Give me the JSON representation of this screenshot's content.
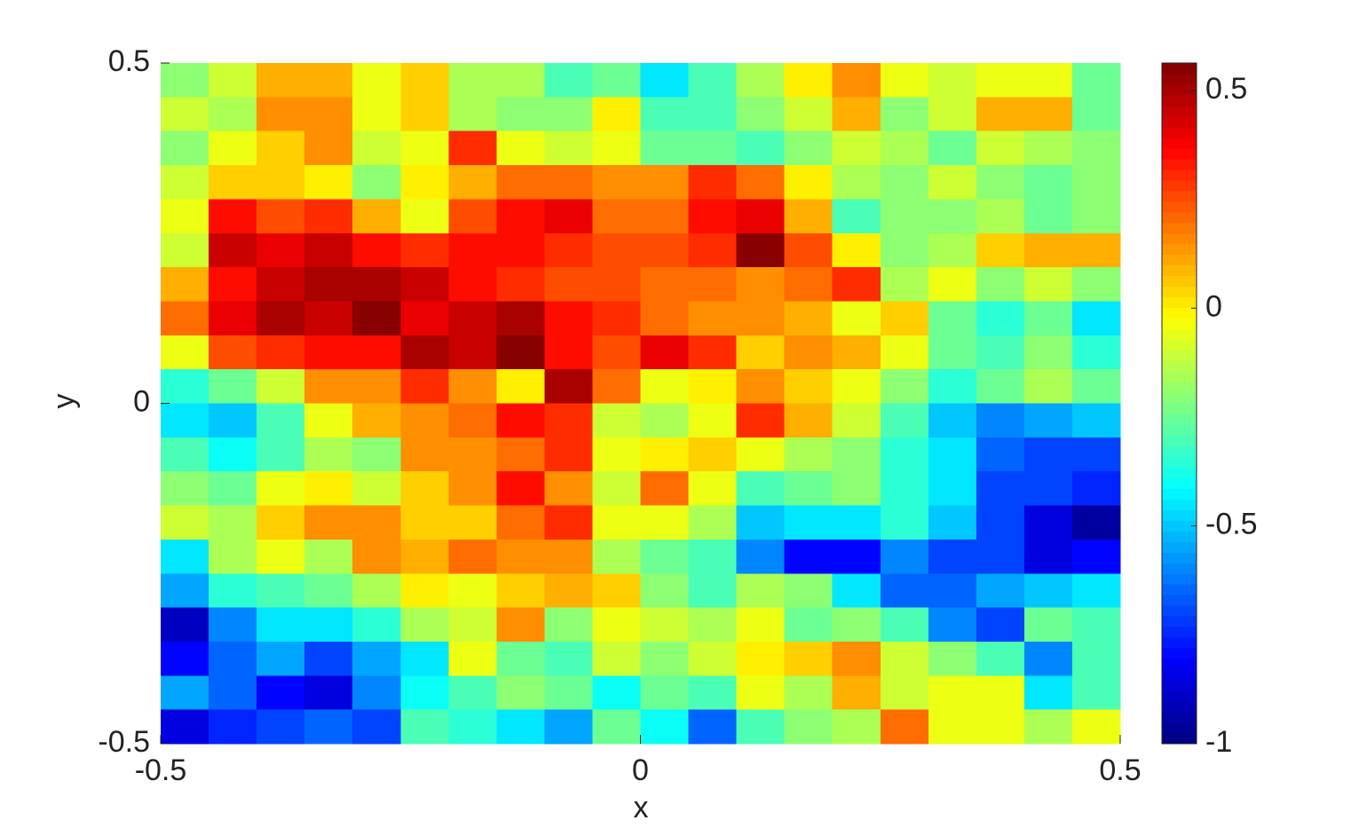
{
  "chart_data": {
    "type": "heatmap",
    "colormap": "jet",
    "xlabel": "x",
    "ylabel": "y",
    "xlim": [
      -0.5,
      0.5
    ],
    "ylim": [
      -0.5,
      0.5
    ],
    "xticks": [
      -0.5,
      0,
      0.5
    ],
    "yticks": [
      -0.5,
      0,
      0.5
    ],
    "clim": [
      -1,
      0.563
    ],
    "cticks": [
      -1,
      -0.5,
      0,
      0.5
    ],
    "z": [
      [
        -0.2,
        -0.1,
        0.1,
        0.1,
        -0.05,
        0.05,
        -0.15,
        -0.15,
        -0.3,
        -0.25,
        -0.45,
        -0.3,
        -0.15,
        0.0,
        0.15,
        -0.05,
        -0.1,
        -0.05,
        -0.05,
        -0.25
      ],
      [
        -0.1,
        -0.15,
        0.15,
        0.15,
        -0.05,
        0.05,
        -0.15,
        -0.2,
        -0.2,
        0.0,
        -0.3,
        -0.3,
        -0.2,
        -0.1,
        0.1,
        -0.2,
        -0.1,
        0.1,
        0.1,
        -0.25
      ],
      [
        -0.2,
        -0.05,
        0.05,
        0.15,
        -0.1,
        -0.05,
        0.3,
        -0.05,
        -0.1,
        -0.05,
        -0.25,
        -0.25,
        -0.3,
        -0.2,
        -0.1,
        -0.15,
        -0.25,
        -0.1,
        -0.15,
        -0.2
      ],
      [
        -0.1,
        0.05,
        0.05,
        0.0,
        -0.2,
        0.0,
        0.1,
        0.2,
        0.2,
        0.15,
        0.15,
        0.3,
        0.2,
        0.0,
        -0.15,
        -0.2,
        -0.1,
        -0.2,
        -0.25,
        -0.2
      ],
      [
        -0.05,
        0.35,
        0.25,
        0.3,
        0.1,
        -0.05,
        0.25,
        0.35,
        0.4,
        0.2,
        0.2,
        0.35,
        0.4,
        0.1,
        -0.3,
        -0.2,
        -0.2,
        -0.15,
        -0.25,
        -0.2
      ],
      [
        -0.1,
        0.45,
        0.4,
        0.45,
        0.35,
        0.3,
        0.35,
        0.35,
        0.3,
        0.25,
        0.25,
        0.3,
        0.55,
        0.25,
        0.0,
        -0.2,
        -0.15,
        0.05,
        0.1,
        0.1
      ],
      [
        0.1,
        0.35,
        0.45,
        0.5,
        0.5,
        0.45,
        0.35,
        0.3,
        0.25,
        0.25,
        0.2,
        0.2,
        0.15,
        0.2,
        0.3,
        -0.15,
        -0.05,
        -0.2,
        -0.1,
        -0.2
      ],
      [
        0.2,
        0.4,
        0.5,
        0.45,
        0.55,
        0.4,
        0.45,
        0.5,
        0.35,
        0.3,
        0.2,
        0.15,
        0.15,
        0.1,
        -0.05,
        0.05,
        -0.25,
        -0.35,
        -0.25,
        -0.45
      ],
      [
        -0.05,
        0.25,
        0.3,
        0.35,
        0.35,
        0.5,
        0.45,
        0.55,
        0.35,
        0.25,
        0.4,
        0.3,
        0.05,
        0.15,
        0.1,
        -0.05,
        -0.25,
        -0.3,
        -0.2,
        -0.35
      ],
      [
        -0.35,
        -0.25,
        -0.1,
        0.15,
        0.15,
        0.3,
        0.15,
        0.0,
        0.5,
        0.2,
        -0.05,
        0.0,
        0.15,
        0.05,
        -0.05,
        -0.2,
        -0.35,
        -0.25,
        -0.15,
        -0.25
      ],
      [
        -0.45,
        -0.5,
        -0.3,
        -0.05,
        0.1,
        0.15,
        0.2,
        0.35,
        0.3,
        -0.1,
        -0.15,
        -0.05,
        0.3,
        0.1,
        -0.1,
        -0.3,
        -0.5,
        -0.6,
        -0.55,
        -0.5
      ],
      [
        -0.3,
        -0.4,
        -0.3,
        -0.15,
        -0.2,
        0.15,
        0.15,
        0.2,
        0.3,
        -0.05,
        0.0,
        0.05,
        -0.05,
        -0.15,
        -0.2,
        -0.35,
        -0.45,
        -0.65,
        -0.7,
        -0.7
      ],
      [
        -0.2,
        -0.25,
        -0.05,
        0.0,
        -0.1,
        0.05,
        0.15,
        0.35,
        0.15,
        -0.1,
        0.2,
        -0.05,
        -0.3,
        -0.25,
        -0.2,
        -0.35,
        -0.45,
        -0.7,
        -0.7,
        -0.75
      ],
      [
        -0.1,
        -0.15,
        0.05,
        0.15,
        0.15,
        0.05,
        0.05,
        0.2,
        0.3,
        -0.05,
        -0.05,
        -0.15,
        -0.5,
        -0.45,
        -0.45,
        -0.35,
        -0.5,
        -0.7,
        -0.85,
        -0.95
      ],
      [
        -0.45,
        -0.15,
        -0.05,
        -0.15,
        0.15,
        0.1,
        0.2,
        0.15,
        0.15,
        -0.15,
        -0.25,
        -0.3,
        -0.6,
        -0.8,
        -0.8,
        -0.6,
        -0.7,
        -0.7,
        -0.85,
        -0.8
      ],
      [
        -0.55,
        -0.35,
        -0.3,
        -0.25,
        -0.15,
        0.0,
        -0.05,
        0.05,
        0.1,
        0.05,
        -0.2,
        -0.3,
        -0.15,
        -0.2,
        -0.45,
        -0.65,
        -0.65,
        -0.55,
        -0.5,
        -0.45
      ],
      [
        -0.9,
        -0.6,
        -0.45,
        -0.45,
        -0.35,
        -0.15,
        -0.1,
        0.15,
        -0.2,
        -0.05,
        -0.1,
        -0.15,
        -0.05,
        -0.25,
        -0.2,
        -0.3,
        -0.6,
        -0.7,
        -0.25,
        -0.3
      ],
      [
        -0.8,
        -0.65,
        -0.55,
        -0.7,
        -0.55,
        -0.45,
        -0.05,
        -0.25,
        -0.3,
        -0.1,
        -0.2,
        -0.1,
        0.0,
        0.05,
        0.15,
        -0.1,
        -0.2,
        -0.3,
        -0.6,
        -0.3
      ],
      [
        -0.55,
        -0.65,
        -0.8,
        -0.85,
        -0.6,
        -0.4,
        -0.3,
        -0.2,
        -0.25,
        -0.4,
        -0.25,
        -0.3,
        -0.05,
        -0.15,
        0.1,
        -0.1,
        -0.05,
        -0.05,
        -0.45,
        -0.3
      ],
      [
        -0.85,
        -0.75,
        -0.7,
        -0.65,
        -0.7,
        -0.3,
        -0.35,
        -0.45,
        -0.55,
        -0.25,
        -0.4,
        -0.65,
        -0.3,
        -0.2,
        -0.15,
        0.2,
        -0.05,
        -0.05,
        -0.15,
        -0.05
      ]
    ]
  }
}
